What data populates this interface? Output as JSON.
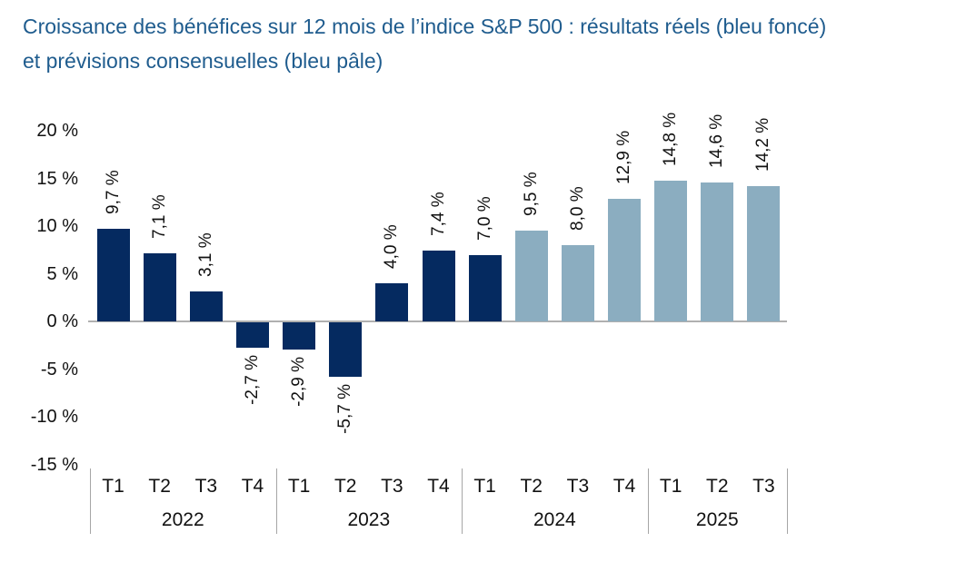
{
  "title": {
    "line1": "Croissance des bénéfices sur 12 mois de l’indice S&P 500 : résultats réels (bleu foncé)",
    "line2": "et prévisions consensuelles (bleu pâle)"
  },
  "chart_data": {
    "type": "bar",
    "unit": "%",
    "title": "Croissance des bénéfices sur 12 mois de l’indice S&P 500 : résultats réels (bleu foncé) et prévisions consensuelles (bleu pâle)",
    "series_legend": [
      {
        "id": "actual",
        "name": "résultats réels (bleu foncé)",
        "color": "#052a60"
      },
      {
        "id": "forecast",
        "name": "prévisions consensuelles (bleu pâle)",
        "color": "#8badc0"
      }
    ],
    "bars": [
      {
        "year": "2022",
        "quarter": "T1",
        "value": 9.7,
        "label": "9,7 %",
        "series": "actual"
      },
      {
        "year": "2022",
        "quarter": "T2",
        "value": 7.1,
        "label": "7,1 %",
        "series": "actual"
      },
      {
        "year": "2022",
        "quarter": "T3",
        "value": 3.1,
        "label": "3,1 %",
        "series": "actual"
      },
      {
        "year": "2022",
        "quarter": "T4",
        "value": -2.7,
        "label": "-2,7 %",
        "series": "actual"
      },
      {
        "year": "2023",
        "quarter": "T1",
        "value": -2.9,
        "label": "-2,9 %",
        "series": "actual"
      },
      {
        "year": "2023",
        "quarter": "T2",
        "value": -5.7,
        "label": "-5,7 %",
        "series": "actual"
      },
      {
        "year": "2023",
        "quarter": "T3",
        "value": 4.0,
        "label": "4,0 %",
        "series": "actual"
      },
      {
        "year": "2023",
        "quarter": "T4",
        "value": 7.4,
        "label": "7,4 %",
        "series": "actual"
      },
      {
        "year": "2024",
        "quarter": "T1",
        "value": 7.0,
        "label": "7,0 %",
        "series": "actual"
      },
      {
        "year": "2024",
        "quarter": "T2",
        "value": 9.5,
        "label": "9,5 %",
        "series": "forecast"
      },
      {
        "year": "2024",
        "quarter": "T3",
        "value": 8.0,
        "label": "8,0 %",
        "series": "forecast"
      },
      {
        "year": "2024",
        "quarter": "T4",
        "value": 12.9,
        "label": "12,9 %",
        "series": "forecast"
      },
      {
        "year": "2025",
        "quarter": "T1",
        "value": 14.8,
        "label": "14,8 %",
        "series": "forecast"
      },
      {
        "year": "2025",
        "quarter": "T2",
        "value": 14.6,
        "label": "14,6 %",
        "series": "forecast"
      },
      {
        "year": "2025",
        "quarter": "T3",
        "value": 14.2,
        "label": "14,2 %",
        "series": "forecast"
      }
    ],
    "x_axis": {
      "groups": [
        {
          "year": "2022",
          "quarters": [
            "T1",
            "T2",
            "T3",
            "T4"
          ]
        },
        {
          "year": "2023",
          "quarters": [
            "T1",
            "T2",
            "T3",
            "T4"
          ]
        },
        {
          "year": "2024",
          "quarters": [
            "T1",
            "T2",
            "T3",
            "T4"
          ]
        },
        {
          "year": "2025",
          "quarters": [
            "T1",
            "T2",
            "T3"
          ]
        }
      ]
    },
    "y_axis": {
      "ticks": [
        20,
        15,
        10,
        5,
        0,
        -5,
        -10,
        -15
      ],
      "tick_labels": [
        "20 %",
        "15 %",
        "10 %",
        "5 %",
        "0 %",
        "-5 %",
        "-10 %",
        "-15 %"
      ],
      "range": [
        -15,
        20
      ],
      "grid": false
    },
    "colors": {
      "actual": "#052a60",
      "forecast": "#8badc0",
      "baseline": "#b0b0b0",
      "separator": "#a6a6a6",
      "title_text": "#1f5c8e",
      "label_text": "#111111"
    },
    "legend_position": "in-title"
  }
}
